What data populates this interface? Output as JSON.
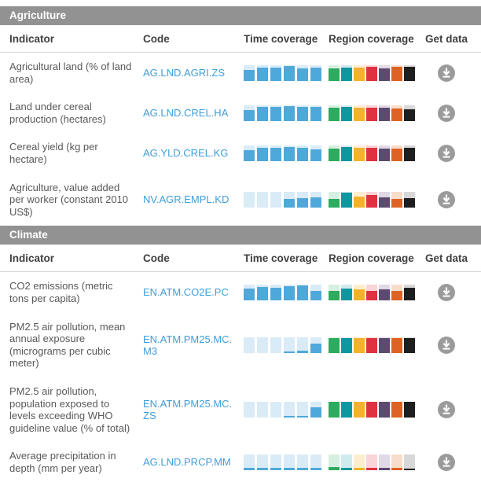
{
  "columns": {
    "indicator": "Indicator",
    "code": "Code",
    "time": "Time coverage",
    "region": "Region coverage",
    "get_data": "Get data"
  },
  "time_palette": {
    "fill": "#4fa8da",
    "tint": "#d9ebf7"
  },
  "region_palette": [
    {
      "name": "green",
      "color": "#2dab5f",
      "tint": "#d7efe0"
    },
    {
      "name": "teal",
      "color": "#0f97a0",
      "tint": "#d0ebed"
    },
    {
      "name": "yellow",
      "color": "#f3b229",
      "tint": "#fdeecd"
    },
    {
      "name": "red",
      "color": "#e03140",
      "tint": "#f9d4d8"
    },
    {
      "name": "purple",
      "color": "#5d4a70",
      "tint": "#dfdae6"
    },
    {
      "name": "orange",
      "color": "#dc6325",
      "tint": "#f8ddcb"
    },
    {
      "name": "black",
      "color": "#1e1e1e",
      "tint": "#d8d8d8"
    }
  ],
  "download_button_color": "#9b9b9b",
  "section_bar_color": "#929292",
  "sections": [
    {
      "title": "Agriculture",
      "rows": [
        {
          "indicator": "Agricultural land (% of land area)",
          "code": "AG.LND.AGRI.ZS",
          "time_coverage_pct": [
            70,
            85,
            85,
            95,
            80,
            85
          ],
          "region_coverage_pct": [
            78,
            82,
            82,
            86,
            80,
            86,
            88
          ]
        },
        {
          "indicator": "Land under cereal production (hectares)",
          "code": "AG.LND.CREL.HA",
          "time_coverage_pct": [
            70,
            88,
            88,
            92,
            88,
            88
          ],
          "region_coverage_pct": [
            82,
            90,
            86,
            86,
            82,
            78,
            75
          ]
        },
        {
          "indicator": "Cereal yield (kg per hectare)",
          "code": "AG.YLD.CREL.KG",
          "time_coverage_pct": [
            70,
            85,
            85,
            90,
            85,
            75
          ],
          "region_coverage_pct": [
            82,
            90,
            86,
            86,
            82,
            78,
            85
          ]
        },
        {
          "indicator": "Agriculture, value added per worker (constant 2010 US$)",
          "code": "NV.AGR.EMPL.KD",
          "time_coverage_pct": [
            0,
            0,
            0,
            55,
            62,
            65
          ],
          "region_coverage_pct": [
            55,
            95,
            70,
            82,
            65,
            55,
            62
          ]
        }
      ]
    },
    {
      "title": "Climate",
      "rows": [
        {
          "indicator": "CO2 emissions (metric tons per capita)",
          "code": "EN.ATM.CO2E.PC",
          "time_coverage_pct": [
            75,
            85,
            82,
            90,
            95,
            58
          ],
          "region_coverage_pct": [
            60,
            75,
            70,
            60,
            72,
            62,
            80
          ]
        },
        {
          "indicator": "PM2.5 air pollution, mean annual exposure (micrograms per cubic meter)",
          "code": "EN.ATM.PM25.MC.M3",
          "time_coverage_pct": [
            0,
            0,
            0,
            8,
            12,
            60
          ],
          "region_coverage_pct": [
            95,
            95,
            95,
            95,
            95,
            95,
            95
          ]
        },
        {
          "indicator": "PM2.5 air pollution, population exposed to levels exceeding WHO guideline value (% of total)",
          "code": "EN.ATM.PM25.MC.ZS",
          "time_coverage_pct": [
            0,
            0,
            0,
            10,
            12,
            68
          ],
          "region_coverage_pct": [
            100,
            100,
            100,
            100,
            100,
            100,
            100
          ]
        },
        {
          "indicator": "Average precipitation in depth (mm per year)",
          "code": "AG.LND.PRCP.MM",
          "time_coverage_pct": [
            15,
            15,
            15,
            15,
            15,
            15
          ],
          "region_coverage_pct": [
            20,
            15,
            15,
            15,
            15,
            12,
            8
          ]
        }
      ]
    }
  ]
}
